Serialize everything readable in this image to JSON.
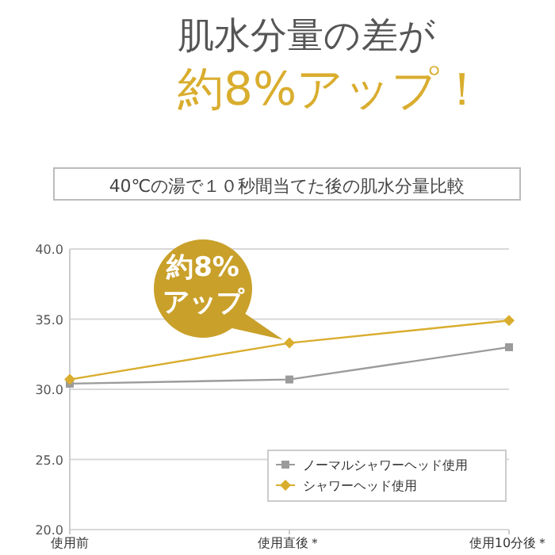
{
  "chart_data": {
    "type": "line",
    "title": "肌水分量の差が",
    "subtitle": "40℃の湯で１０秒間当てた後の肌水分量比較",
    "annotations": [
      "約8%アップ！",
      {
        "text": "約8%アップ",
        "x": "使用直後＊",
        "y": 33.3
      }
    ],
    "categories": [
      "使用前",
      "使用直後＊",
      "使用10分後＊"
    ],
    "series": [
      {
        "name": "ノーマルシャワーヘッド使用",
        "color": "#9b9b9b",
        "marker": "square",
        "values": [
          30.4,
          30.7,
          33.0
        ]
      },
      {
        "name": "シャワーヘッド使用",
        "color": "#d9ad2e",
        "marker": "diamond",
        "values": [
          30.7,
          33.3,
          34.9
        ]
      }
    ],
    "ylim": [
      20,
      40
    ],
    "yticks": [
      {
        "value": 20,
        "label": "20.0"
      },
      {
        "value": 25,
        "label": "25.0"
      },
      {
        "value": 30,
        "label": "30.0"
      },
      {
        "value": 35,
        "label": "35.0"
      },
      {
        "value": 40,
        "label": "40.0"
      }
    ],
    "grid": "y",
    "legend": "bottom right"
  }
}
